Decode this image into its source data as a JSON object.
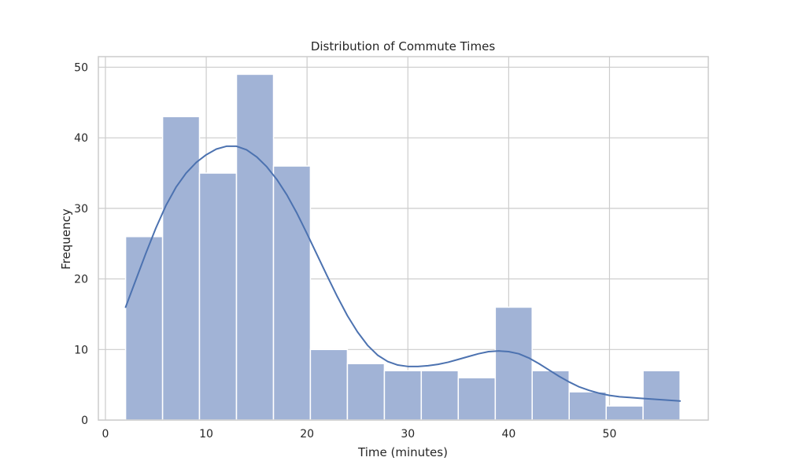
{
  "chart_data": {
    "type": "bar",
    "title": "Distribution of Commute Times",
    "xlabel": "Time (minutes)",
    "ylabel": "Frequency",
    "xlim": [
      -0.7,
      59.8
    ],
    "ylim": [
      0,
      51.5
    ],
    "x_ticks": [
      0,
      10,
      20,
      30,
      40,
      50
    ],
    "y_ticks": [
      0,
      10,
      20,
      30,
      40,
      50
    ],
    "grid": true,
    "bin_edges": [
      2.0,
      5.67,
      9.33,
      13.0,
      16.67,
      20.33,
      24.0,
      27.67,
      31.33,
      35.0,
      38.67,
      42.33,
      46.0,
      49.67,
      53.33,
      57.0
    ],
    "values": [
      26,
      43,
      35,
      49,
      36,
      10,
      8,
      7,
      7,
      6,
      16,
      7,
      4,
      2,
      7
    ],
    "kde": {
      "x": [
        2,
        3,
        4,
        5,
        6,
        7,
        8,
        9,
        10,
        11,
        12,
        13,
        14,
        15,
        16,
        17,
        18,
        19,
        20,
        21,
        22,
        23,
        24,
        25,
        26,
        27,
        28,
        29,
        30,
        31,
        32,
        33,
        34,
        35,
        36,
        37,
        38,
        39,
        40,
        41,
        42,
        43,
        44,
        45,
        46,
        47,
        48,
        49,
        50,
        51,
        52,
        53,
        54,
        55,
        56,
        57
      ],
      "y": [
        16.0,
        19.8,
        23.6,
        27.2,
        30.4,
        33.0,
        35.0,
        36.5,
        37.6,
        38.4,
        38.8,
        38.8,
        38.3,
        37.3,
        35.9,
        34.1,
        31.9,
        29.3,
        26.4,
        23.4,
        20.4,
        17.5,
        14.8,
        12.5,
        10.6,
        9.2,
        8.3,
        7.8,
        7.6,
        7.6,
        7.7,
        7.9,
        8.2,
        8.6,
        9.0,
        9.4,
        9.7,
        9.8,
        9.7,
        9.4,
        8.8,
        8.0,
        7.1,
        6.2,
        5.4,
        4.7,
        4.2,
        3.8,
        3.5,
        3.3,
        3.2,
        3.1,
        3.0,
        2.9,
        2.8,
        2.7
      ]
    }
  },
  "colors": {
    "bar_fill": "#a1b3d6",
    "bar_edge": "#ffffff",
    "kde_line": "#4c72b0",
    "grid": "#cccccc",
    "axes_frame": "#cccccc",
    "text": "#262626"
  }
}
